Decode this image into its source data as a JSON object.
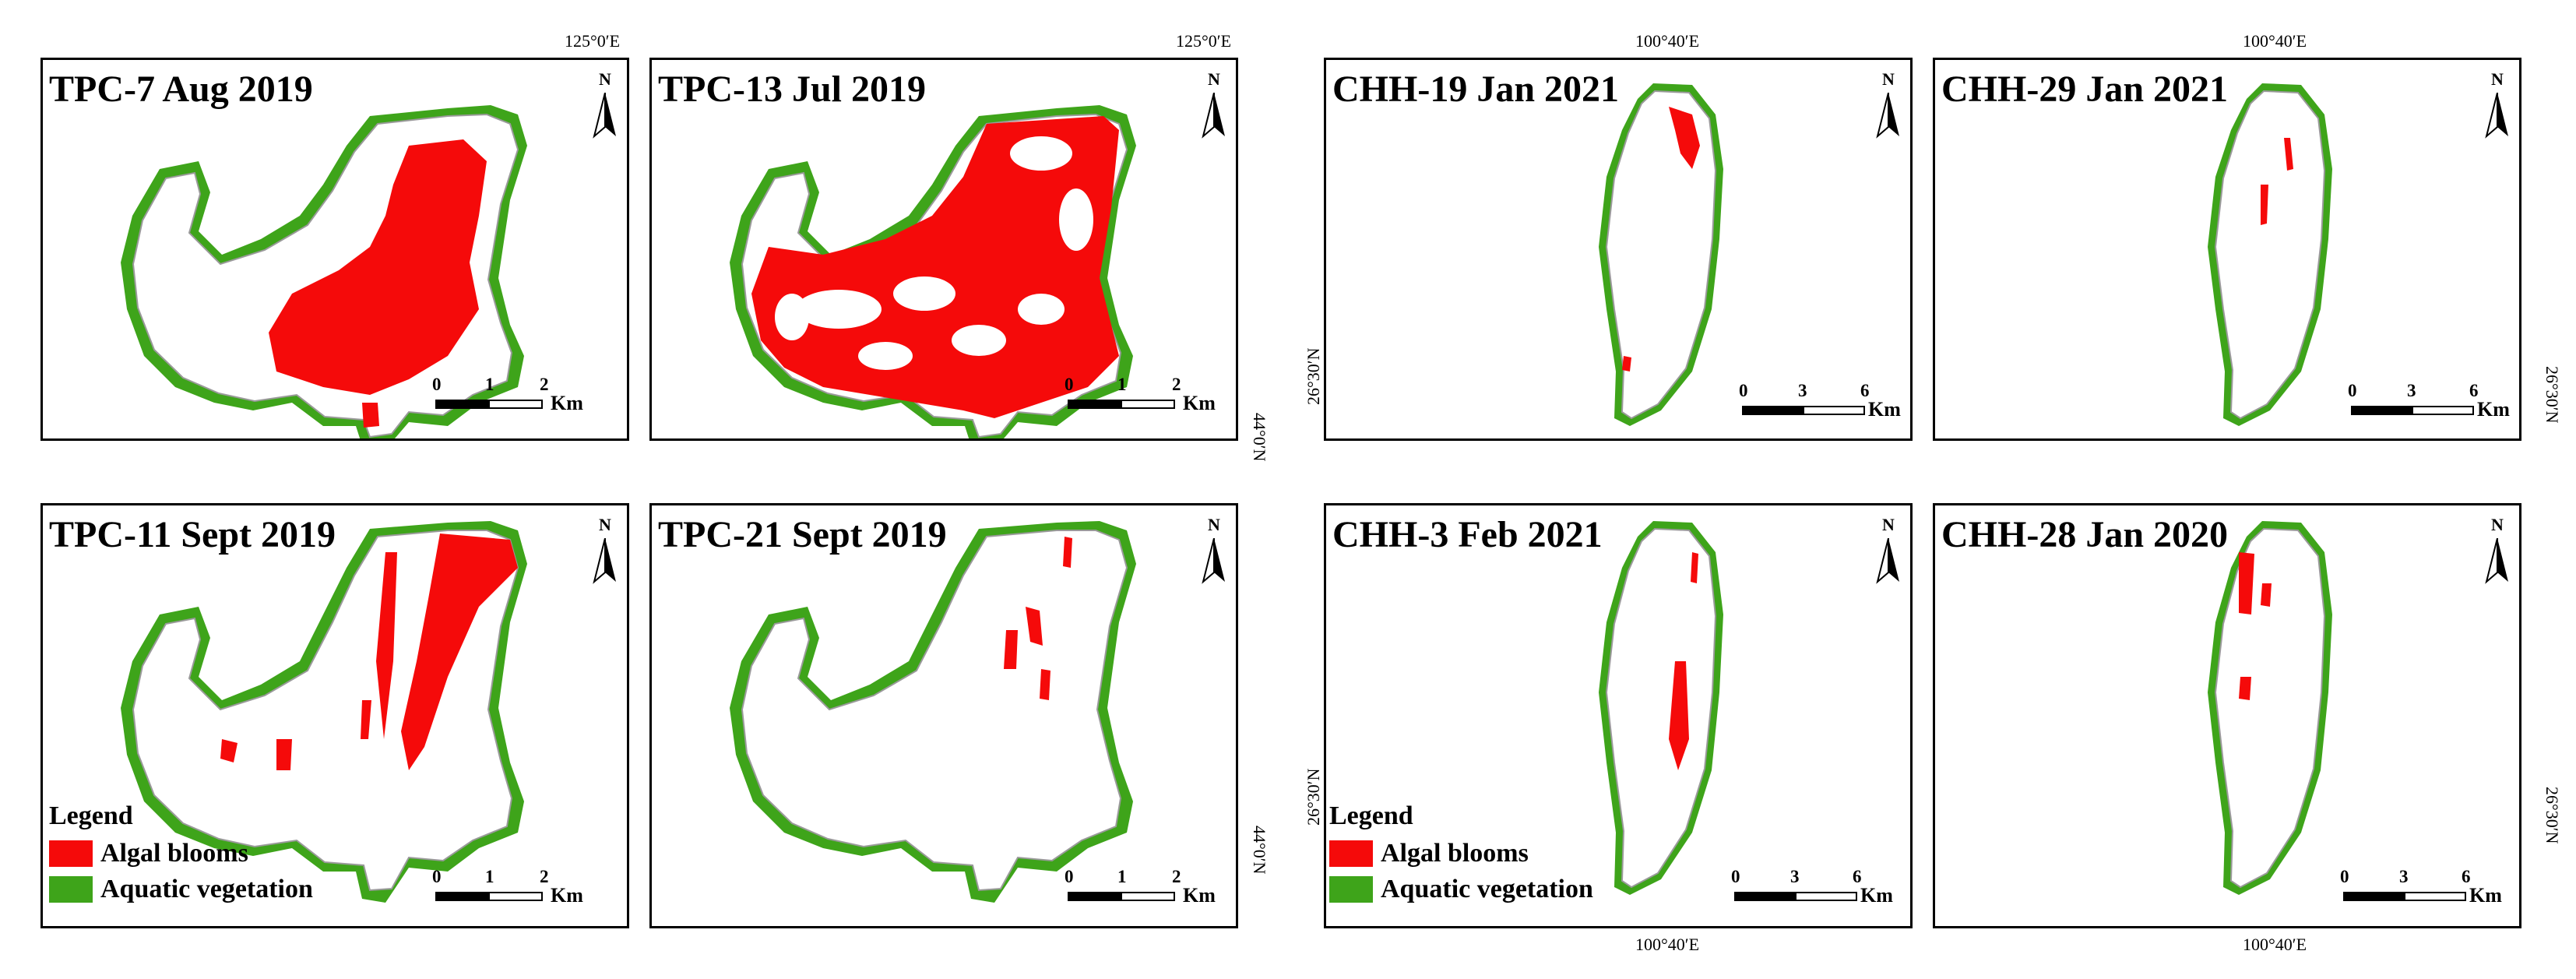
{
  "colors": {
    "algal": "#f50a0a",
    "vegetation": "#3ea41a",
    "outline": "#9a9a9a"
  },
  "panels": [
    {
      "id": "p1",
      "title": "TPC-7 Aug 2019",
      "lake": "tpc",
      "scale": {
        "ticks": [
          "0",
          "1",
          "2"
        ],
        "unit": "Km"
      }
    },
    {
      "id": "p2",
      "title": "TPC-13 Jul 2019",
      "lake": "tpc",
      "scale": {
        "ticks": [
          "0",
          "1",
          "2"
        ],
        "unit": "Km"
      }
    },
    {
      "id": "p3",
      "title": "CHH-19 Jan 2021",
      "lake": "chh",
      "scale": {
        "ticks": [
          "0",
          "3",
          "6"
        ],
        "unit": "Km"
      }
    },
    {
      "id": "p4",
      "title": "CHH-29 Jan 2021",
      "lake": "chh",
      "scale": {
        "ticks": [
          "0",
          "3",
          "6"
        ],
        "unit": "Km"
      }
    },
    {
      "id": "p5",
      "title": "TPC-11 Sept 2019",
      "lake": "tpc",
      "scale": {
        "ticks": [
          "0",
          "1",
          "2"
        ],
        "unit": "Km"
      }
    },
    {
      "id": "p6",
      "title": "TPC-21 Sept 2019",
      "lake": "tpc",
      "scale": {
        "ticks": [
          "0",
          "1",
          "2"
        ],
        "unit": "Km"
      }
    },
    {
      "id": "p7",
      "title": "CHH-3 Feb 2021",
      "lake": "chh",
      "scale": {
        "ticks": [
          "0",
          "3",
          "6"
        ],
        "unit": "Km"
      }
    },
    {
      "id": "p8",
      "title": "CHH-28 Jan 2020",
      "lake": "chh",
      "scale": {
        "ticks": [
          "0",
          "3",
          "6"
        ],
        "unit": "Km"
      }
    }
  ],
  "north_label": "N",
  "legend": {
    "title": "Legend",
    "algal": "Algal blooms",
    "vegetation": "Aquatic vegetation"
  },
  "coords": {
    "tpc_lon": "125°0′E",
    "tpc_lat": "44°0′N",
    "chh_lon": "100°40′E",
    "chh_lat": "26°30′N"
  }
}
